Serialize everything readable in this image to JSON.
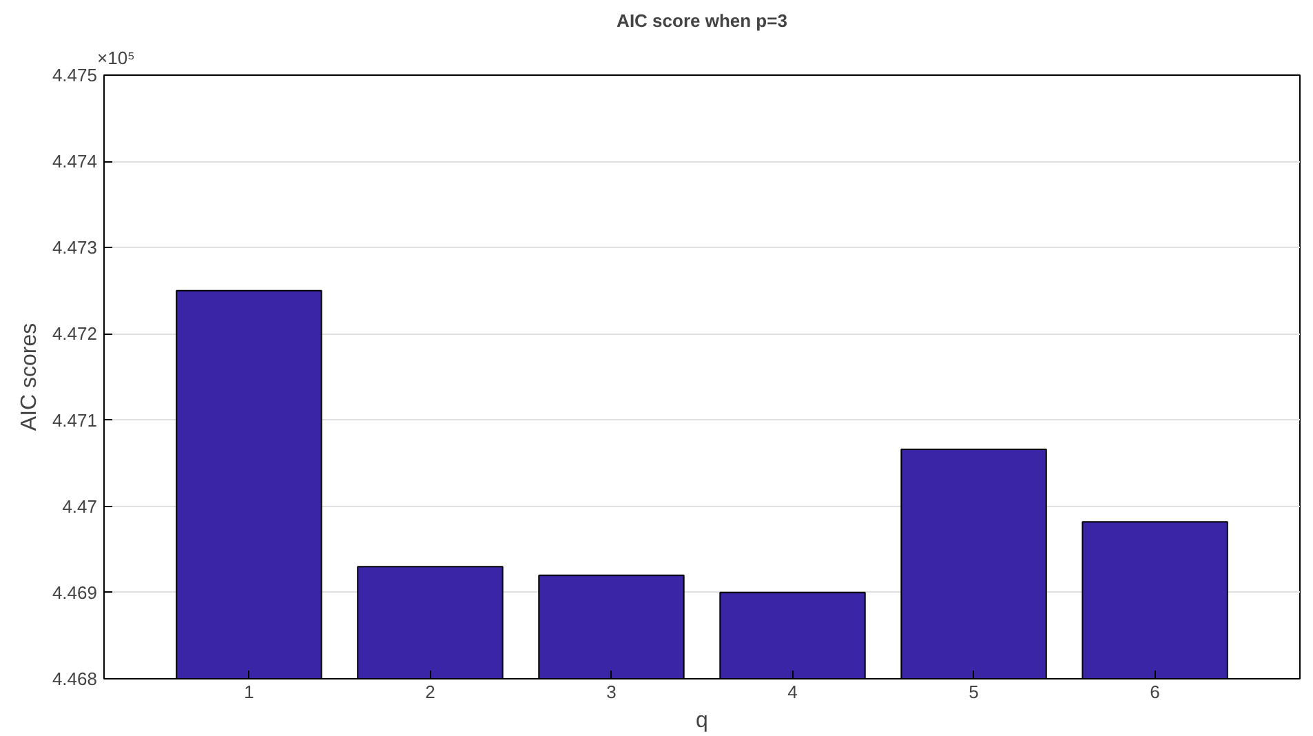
{
  "chart_data": {
    "type": "bar",
    "title": "AIC score when p=3",
    "xlabel": "q",
    "ylabel": "AIC scores",
    "categories": [
      "1",
      "2",
      "3",
      "4",
      "5",
      "6"
    ],
    "values": [
      4.4725,
      4.4693,
      4.4692,
      4.469,
      4.47066,
      4.46982
    ],
    "color": "#3a25a6",
    "ylim": [
      4.468,
      4.475
    ],
    "yticks": [
      4.468,
      4.469,
      4.47,
      4.471,
      4.472,
      4.473,
      4.474,
      4.475
    ],
    "grid": "y",
    "annotations": [
      "×10⁵"
    ]
  }
}
